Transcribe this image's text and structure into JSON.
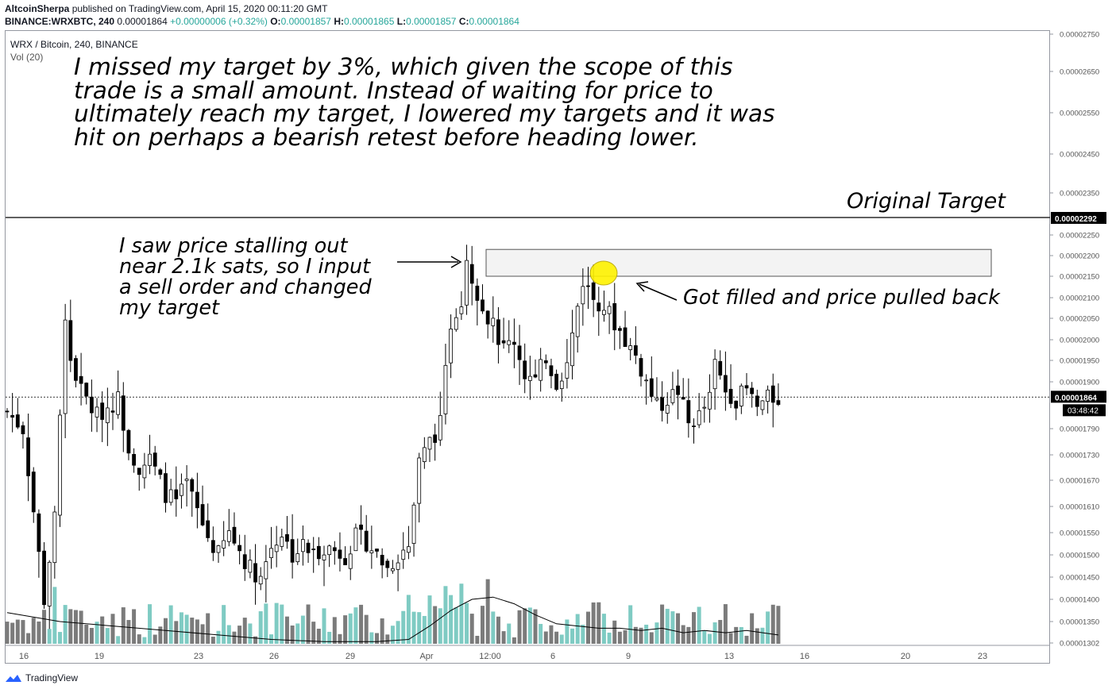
{
  "header": {
    "author": "AltcoinSherpa",
    "published_text": "published on TradingView.com, April 15, 2020 00:11:20 GMT",
    "symbol": "BINANCE:WRXBTC, 240",
    "last_price": "0.00001864",
    "change": "+0.00000006 (+0.32%)",
    "ohlc": {
      "o_label": "O:",
      "o": "0.00001857",
      "h_label": "H:",
      "h": "0.00001865",
      "l_label": "L:",
      "l": "0.00001857",
      "c_label": "C:",
      "c": "0.00001864"
    }
  },
  "pane": {
    "title": "WRX / Bitcoin, 240, BINANCE",
    "volume_label": "Vol (20)"
  },
  "annotations": {
    "main_note": "I missed my target by 3%, which given the scope of this\ntrade is a small amount. Instead of waiting for price to\nultimately reach my target, I lowered my targets and it was\nhit on perhaps a bearish retest before heading lower.",
    "original_target": "Original Target",
    "stall_note": "I saw price stalling out\nnear 2.1k sats, so I input\na sell order and changed\nmy target",
    "filled_note": "Got filled and price pulled back"
  },
  "footer": {
    "brand": "TradingView"
  },
  "colors": {
    "up_volume": "#7fcbc3",
    "down_volume": "#7b7b7b",
    "highlight": "#fff200",
    "box_fill": "#f3f3f3",
    "accent": "#2962ff"
  },
  "chart_data": {
    "type": "candlestick",
    "pair": "WRX / Bitcoin",
    "timeframe": "240",
    "exchange": "BINANCE",
    "y_axis": {
      "range": [
        1.3e-05,
        2.76e-05
      ],
      "ticks": [
        "0.00002750",
        "0.00002650",
        "0.00002550",
        "0.00002450",
        "0.00002350",
        "0.00002250",
        "0.00002200",
        "0.00002150",
        "0.00002100",
        "0.00002050",
        "0.00002000",
        "0.00001950",
        "0.00001900",
        "0.00001790",
        "0.00001730",
        "0.00001670",
        "0.00001610",
        "0.00001550",
        "0.00001500",
        "0.00001450",
        "0.00001400",
        "0.00001350",
        "0.00001302"
      ],
      "target_label": "0.00002292",
      "price_label": "0.00001864",
      "countdown": "03:48:42"
    },
    "x_axis": {
      "ticks": [
        "16",
        "19",
        "23",
        "26",
        "29",
        "Apr",
        "12:00",
        "6",
        "9",
        "13",
        "16",
        "20",
        "23"
      ]
    },
    "levels": {
      "original_target": 2.292e-05,
      "last_price": 1.864e-05
    },
    "sell_zone": {
      "low": 2.15e-05,
      "high": 2.215e-05
    },
    "close_path": [
      [
        0,
        1.83
      ],
      [
        3,
        1.79
      ],
      [
        5,
        1.6
      ],
      [
        7,
        1.4
      ],
      [
        9,
        1.58
      ],
      [
        11,
        2.05
      ],
      [
        12,
        1.95
      ],
      [
        14,
        1.88
      ],
      [
        17,
        1.82
      ],
      [
        19,
        1.84
      ],
      [
        21,
        1.86
      ],
      [
        23,
        1.75
      ],
      [
        25,
        1.7
      ],
      [
        27,
        1.72
      ],
      [
        30,
        1.64
      ],
      [
        32,
        1.62
      ],
      [
        34,
        1.66
      ],
      [
        36,
        1.6
      ],
      [
        38,
        1.54
      ],
      [
        40,
        1.5
      ],
      [
        42,
        1.55
      ],
      [
        44,
        1.51
      ],
      [
        46,
        1.47
      ],
      [
        48,
        1.45
      ],
      [
        50,
        1.52
      ],
      [
        52,
        1.55
      ],
      [
        54,
        1.5
      ],
      [
        56,
        1.52
      ],
      [
        58,
        1.5
      ],
      [
        60,
        1.52
      ],
      [
        62,
        1.51
      ],
      [
        64,
        1.5
      ],
      [
        66,
        1.54
      ],
      [
        68,
        1.53
      ],
      [
        70,
        1.5
      ],
      [
        72,
        1.47
      ],
      [
        74,
        1.5
      ],
      [
        76,
        1.52
      ],
      [
        78,
        1.71
      ],
      [
        80,
        1.76
      ],
      [
        82,
        1.8
      ],
      [
        84,
        2.04
      ],
      [
        86,
        2.1
      ],
      [
        87,
        2.2
      ],
      [
        88,
        2.15
      ],
      [
        90,
        2.08
      ],
      [
        92,
        2.03
      ],
      [
        94,
        1.98
      ],
      [
        96,
        2.0
      ],
      [
        98,
        1.92
      ],
      [
        100,
        1.9
      ],
      [
        102,
        1.96
      ],
      [
        104,
        1.9
      ],
      [
        106,
        1.94
      ],
      [
        108,
        2.08
      ],
      [
        109,
        2.14
      ],
      [
        111,
        2.1
      ],
      [
        113,
        2.08
      ],
      [
        115,
        2.04
      ],
      [
        117,
        2.0
      ],
      [
        119,
        1.96
      ],
      [
        121,
        1.9
      ],
      [
        123,
        1.84
      ],
      [
        125,
        1.86
      ],
      [
        127,
        1.88
      ],
      [
        129,
        1.8
      ],
      [
        131,
        1.82
      ],
      [
        133,
        1.86
      ],
      [
        134,
        1.94
      ],
      [
        136,
        1.88
      ],
      [
        138,
        1.86
      ],
      [
        140,
        1.88
      ],
      [
        142,
        1.84
      ],
      [
        144,
        1.86
      ],
      [
        146,
        1.864
      ]
    ],
    "volume_ma": [
      [
        0,
        1.37
      ],
      [
        10,
        1.35
      ],
      [
        20,
        1.34
      ],
      [
        30,
        1.33
      ],
      [
        40,
        1.32
      ],
      [
        50,
        1.31
      ],
      [
        60,
        1.305
      ],
      [
        70,
        1.305
      ],
      [
        76,
        1.31
      ],
      [
        80,
        1.34
      ],
      [
        84,
        1.375
      ],
      [
        88,
        1.4
      ],
      [
        92,
        1.405
      ],
      [
        96,
        1.39
      ],
      [
        100,
        1.365
      ],
      [
        104,
        1.345
      ],
      [
        108,
        1.34
      ],
      [
        112,
        1.335
      ],
      [
        116,
        1.335
      ],
      [
        120,
        1.33
      ],
      [
        124,
        1.335
      ],
      [
        128,
        1.325
      ],
      [
        132,
        1.33
      ],
      [
        136,
        1.325
      ],
      [
        140,
        1.33
      ],
      [
        146,
        1.32
      ]
    ]
  }
}
